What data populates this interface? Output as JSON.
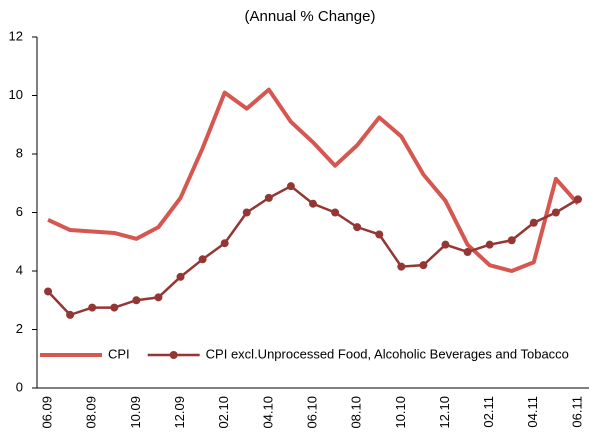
{
  "chart_data": {
    "type": "line",
    "title": "(Annual % Change)",
    "categories": [
      "06.09",
      null,
      "08.09",
      null,
      "10.09",
      null,
      "12.09",
      null,
      "02.10",
      null,
      "04.10",
      null,
      "06.10",
      null,
      "08.10",
      null,
      "10.10",
      null,
      "12.10",
      null,
      "02.11",
      null,
      "04.11",
      null,
      "06.11"
    ],
    "series": [
      {
        "name": "CPI",
        "color": "#d65650",
        "marker": false,
        "values": [
          5.75,
          5.4,
          5.35,
          5.3,
          5.1,
          5.5,
          6.5,
          8.2,
          10.1,
          9.55,
          10.2,
          9.1,
          8.4,
          7.6,
          8.3,
          9.25,
          8.6,
          7.3,
          6.4,
          4.9,
          4.2,
          4.0,
          4.3,
          7.15,
          6.3
        ]
      },
      {
        "name": "CPI excl.Unprocessed Food, Alcoholic Beverages and Tobacco",
        "color": "#943634",
        "marker": true,
        "values": [
          3.3,
          2.5,
          2.75,
          2.75,
          3.0,
          3.1,
          3.8,
          4.4,
          4.95,
          6.0,
          6.5,
          6.9,
          6.3,
          6.0,
          5.5,
          5.25,
          4.15,
          4.2,
          4.9,
          4.65,
          4.9,
          5.05,
          5.65,
          6.0,
          6.45
        ]
      }
    ],
    "ylim": [
      0,
      12
    ],
    "yticks": [
      0,
      2,
      4,
      6,
      8,
      10,
      12
    ],
    "grid": false,
    "legend": "bottom"
  }
}
